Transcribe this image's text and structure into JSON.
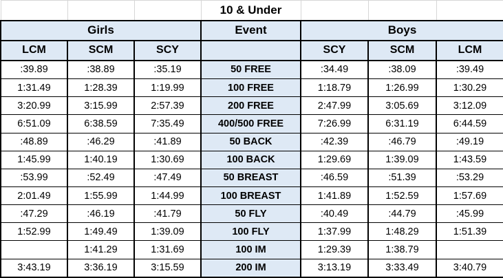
{
  "colors": {
    "header_bg": "#DEE9F5",
    "table_border": "#000000",
    "gridline": "#D6D6D6",
    "text": "#000000"
  },
  "chart_data": {
    "type": "table",
    "title": "10 & Under",
    "column_groups": [
      "Girls",
      "Event",
      "Boys"
    ],
    "girls_columns": [
      "LCM",
      "SCM",
      "SCY"
    ],
    "boys_columns": [
      "SCY",
      "SCM",
      "LCM"
    ],
    "rows": [
      {
        "event": "50 FREE",
        "girls": [
          ":39.89",
          ":38.89",
          ":35.19"
        ],
        "boys": [
          ":34.49",
          ":38.09",
          ":39.49"
        ]
      },
      {
        "event": "100 FREE",
        "girls": [
          "1:31.49",
          "1:28.39",
          "1:19.99"
        ],
        "boys": [
          "1:18.79",
          "1:26.99",
          "1:30.29"
        ]
      },
      {
        "event": "200 FREE",
        "girls": [
          "3:20.99",
          "3:15.99",
          "2:57.39"
        ],
        "boys": [
          "2:47.99",
          "3:05.69",
          "3:12.09"
        ]
      },
      {
        "event": "400/500 FREE",
        "girls": [
          "6:51.09",
          "6:38.59",
          "7:35.49"
        ],
        "boys": [
          "7:26.99",
          "6:31.19",
          "6:44.59"
        ]
      },
      {
        "event": "50 BACK",
        "girls": [
          ":48.89",
          ":46.29",
          ":41.89"
        ],
        "boys": [
          ":42.39",
          ":46.79",
          ":49.19"
        ]
      },
      {
        "event": "100 BACK",
        "girls": [
          "1:45.99",
          "1:40.19",
          "1:30.69"
        ],
        "boys": [
          "1:29.69",
          "1:39.09",
          "1:43.59"
        ]
      },
      {
        "event": "50 BREAST",
        "girls": [
          ":53.99",
          ":52.49",
          ":47.49"
        ],
        "boys": [
          ":46.59",
          ":51.39",
          ":53.29"
        ]
      },
      {
        "event": "100 BREAST",
        "girls": [
          "2:01.49",
          "1:55.99",
          "1:44.99"
        ],
        "boys": [
          "1:41.89",
          "1:52.59",
          "1:57.69"
        ]
      },
      {
        "event": "50 FLY",
        "girls": [
          ":47.29",
          ":46.19",
          ":41.79"
        ],
        "boys": [
          ":40.49",
          ":44.79",
          ":45.99"
        ]
      },
      {
        "event": "100 FLY",
        "girls": [
          "1:52.99",
          "1:49.49",
          "1:39.09"
        ],
        "boys": [
          "1:37.99",
          "1:48.29",
          "1:51.39"
        ]
      },
      {
        "event": "100 IM",
        "girls": [
          "",
          "1:41.29",
          "1:31.69"
        ],
        "boys": [
          "1:29.39",
          "1:38.79",
          ""
        ]
      },
      {
        "event": "200 IM",
        "girls": [
          "3:43.19",
          "3:36.19",
          "3:15.59"
        ],
        "boys": [
          "3:13.19",
          "3:33.49",
          "3:40.79"
        ]
      }
    ]
  }
}
